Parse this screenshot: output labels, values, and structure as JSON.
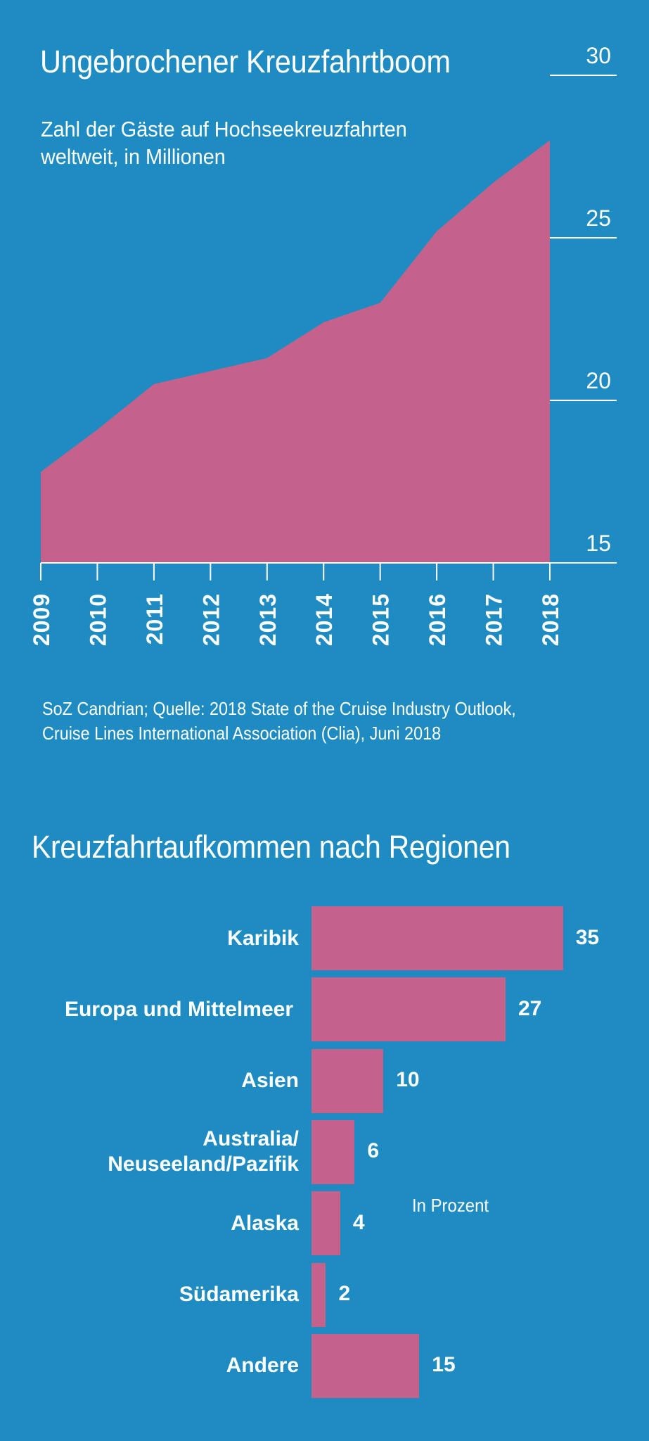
{
  "colors": {
    "background": "#1e8cc2",
    "fill": "#c5628b",
    "text": "#ffffff"
  },
  "chart_data": [
    {
      "type": "area",
      "title": "Ungebrochener Kreuzfahrtboom",
      "subtitle": [
        "Zahl der Gäste auf Hochseekreuzfahrten",
        "weltweit, in Millionen"
      ],
      "x": [
        "2009",
        "2010",
        "2011",
        "2012",
        "2013",
        "2014",
        "2015",
        "2016",
        "2017",
        "2018"
      ],
      "values": [
        17.8,
        19.1,
        20.5,
        20.9,
        21.3,
        22.4,
        23.0,
        25.2,
        26.7,
        28.0
      ],
      "ylim": [
        15,
        30
      ],
      "yticks": [
        "15",
        "20",
        "25",
        "30"
      ],
      "ytick_values": [
        15,
        20,
        25,
        30
      ],
      "xlabel": "",
      "ylabel": "",
      "source": [
        "SoZ Candrian; Quelle: 2018 State of the Cruise Industry Outlook,",
        "Cruise Lines International Association (Clia), Juni 2018"
      ]
    },
    {
      "type": "bar",
      "orientation": "horizontal",
      "title": "Kreuzfahrtaufkommen nach Regionen",
      "categories": [
        [
          "Karibik"
        ],
        [
          "Europa und Mittelmeer"
        ],
        [
          "Asien"
        ],
        [
          "Australia/",
          "Neuseeland/Pazifik"
        ],
        [
          "Alaska"
        ],
        [
          "Südamerika"
        ],
        [
          "Andere"
        ]
      ],
      "values": [
        35,
        27,
        10,
        6,
        4,
        2,
        15
      ],
      "value_labels": [
        "35",
        "27",
        "10",
        "6",
        "4",
        "2",
        "15"
      ],
      "unit_note": "In Prozent"
    }
  ]
}
